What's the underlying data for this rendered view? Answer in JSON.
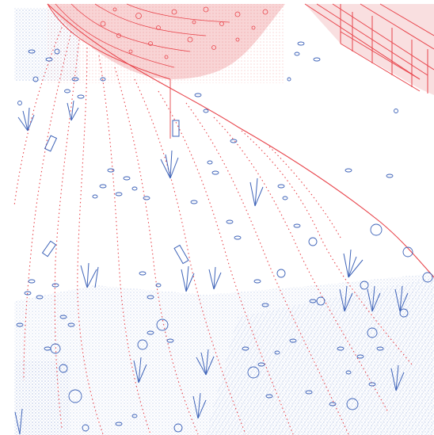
{
  "colors": {
    "background": "#ffffff",
    "red_linework": "#e8454c",
    "red_wash": "#f6c9cb",
    "blue_linework": "#3e63b8",
    "blue_stipple": "#8fa6d8"
  }
}
